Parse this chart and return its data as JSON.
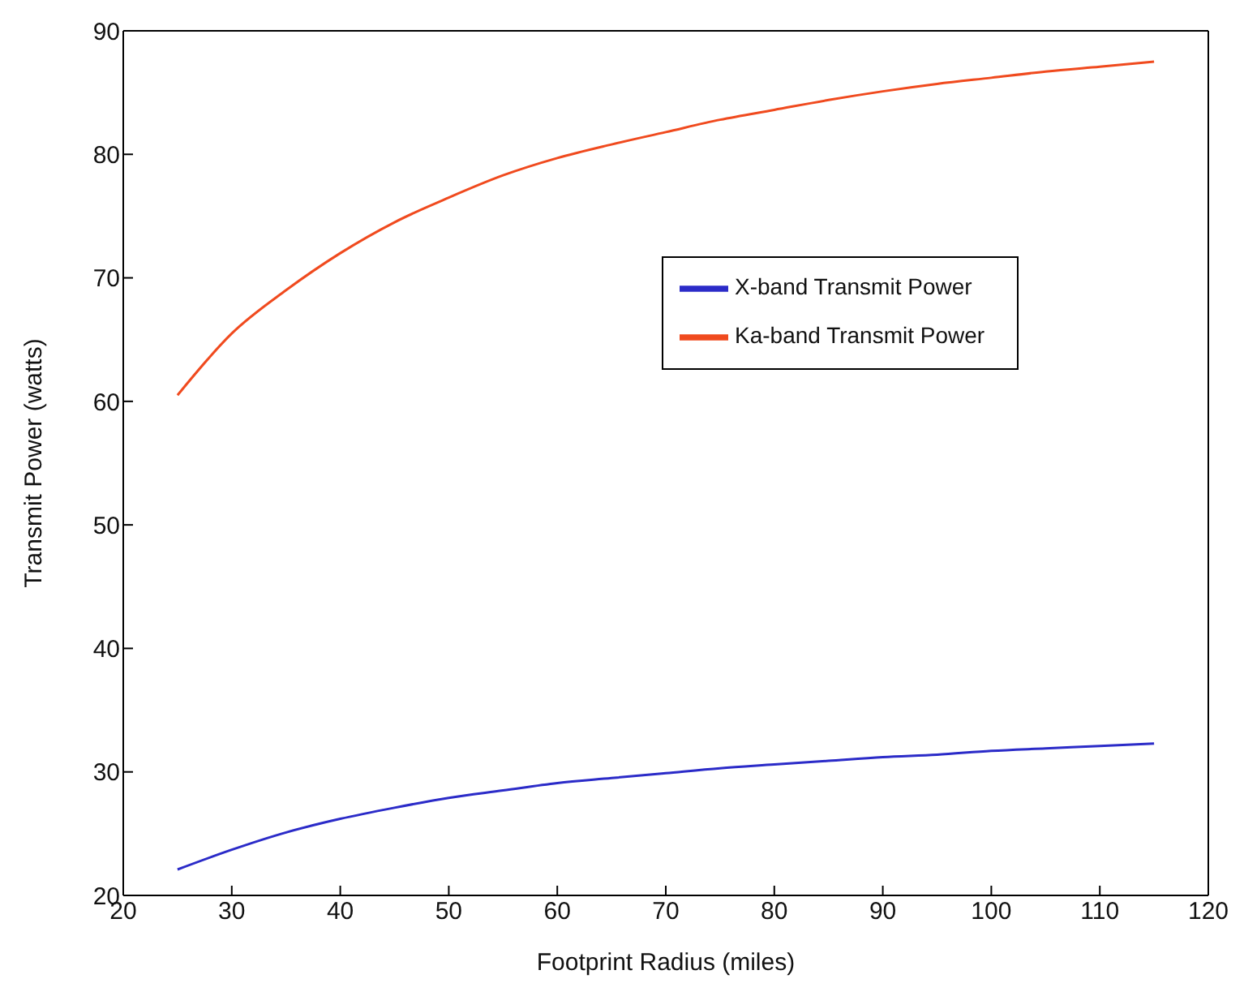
{
  "chart_data": {
    "type": "line",
    "xlabel": "Footprint Radius (miles)",
    "ylabel": "Transmit Power (watts)",
    "x": [
      25,
      30,
      35,
      40,
      45,
      50,
      55,
      60,
      65,
      70,
      75,
      80,
      85,
      90,
      95,
      100,
      105,
      110,
      115
    ],
    "series": [
      {
        "name": "X-band Transmit Power",
        "color": "#2b2bc8",
        "values": [
          22.1,
          23.7,
          25.1,
          26.2,
          27.1,
          27.9,
          28.5,
          29.1,
          29.5,
          29.9,
          30.3,
          30.6,
          30.9,
          31.2,
          31.4,
          31.7,
          31.9,
          32.1,
          32.3
        ]
      },
      {
        "name": "Ka-band Transmit Power",
        "color": "#f04a1e",
        "values": [
          60.5,
          65.5,
          69,
          72,
          74.5,
          76.5,
          78.3,
          79.7,
          80.8,
          81.8,
          82.8,
          83.6,
          84.4,
          85.1,
          85.7,
          86.2,
          86.7,
          87.1,
          87.5
        ]
      }
    ],
    "xlim": [
      20,
      120
    ],
    "xticks": [
      20,
      30,
      40,
      50,
      60,
      70,
      80,
      90,
      100,
      110,
      120
    ],
    "ylim": [
      20,
      90
    ],
    "yticks": [
      20,
      30,
      40,
      50,
      60,
      70,
      80,
      90
    ],
    "grid": false,
    "legend": "right",
    "marker": "none",
    "line_style": "solid"
  }
}
